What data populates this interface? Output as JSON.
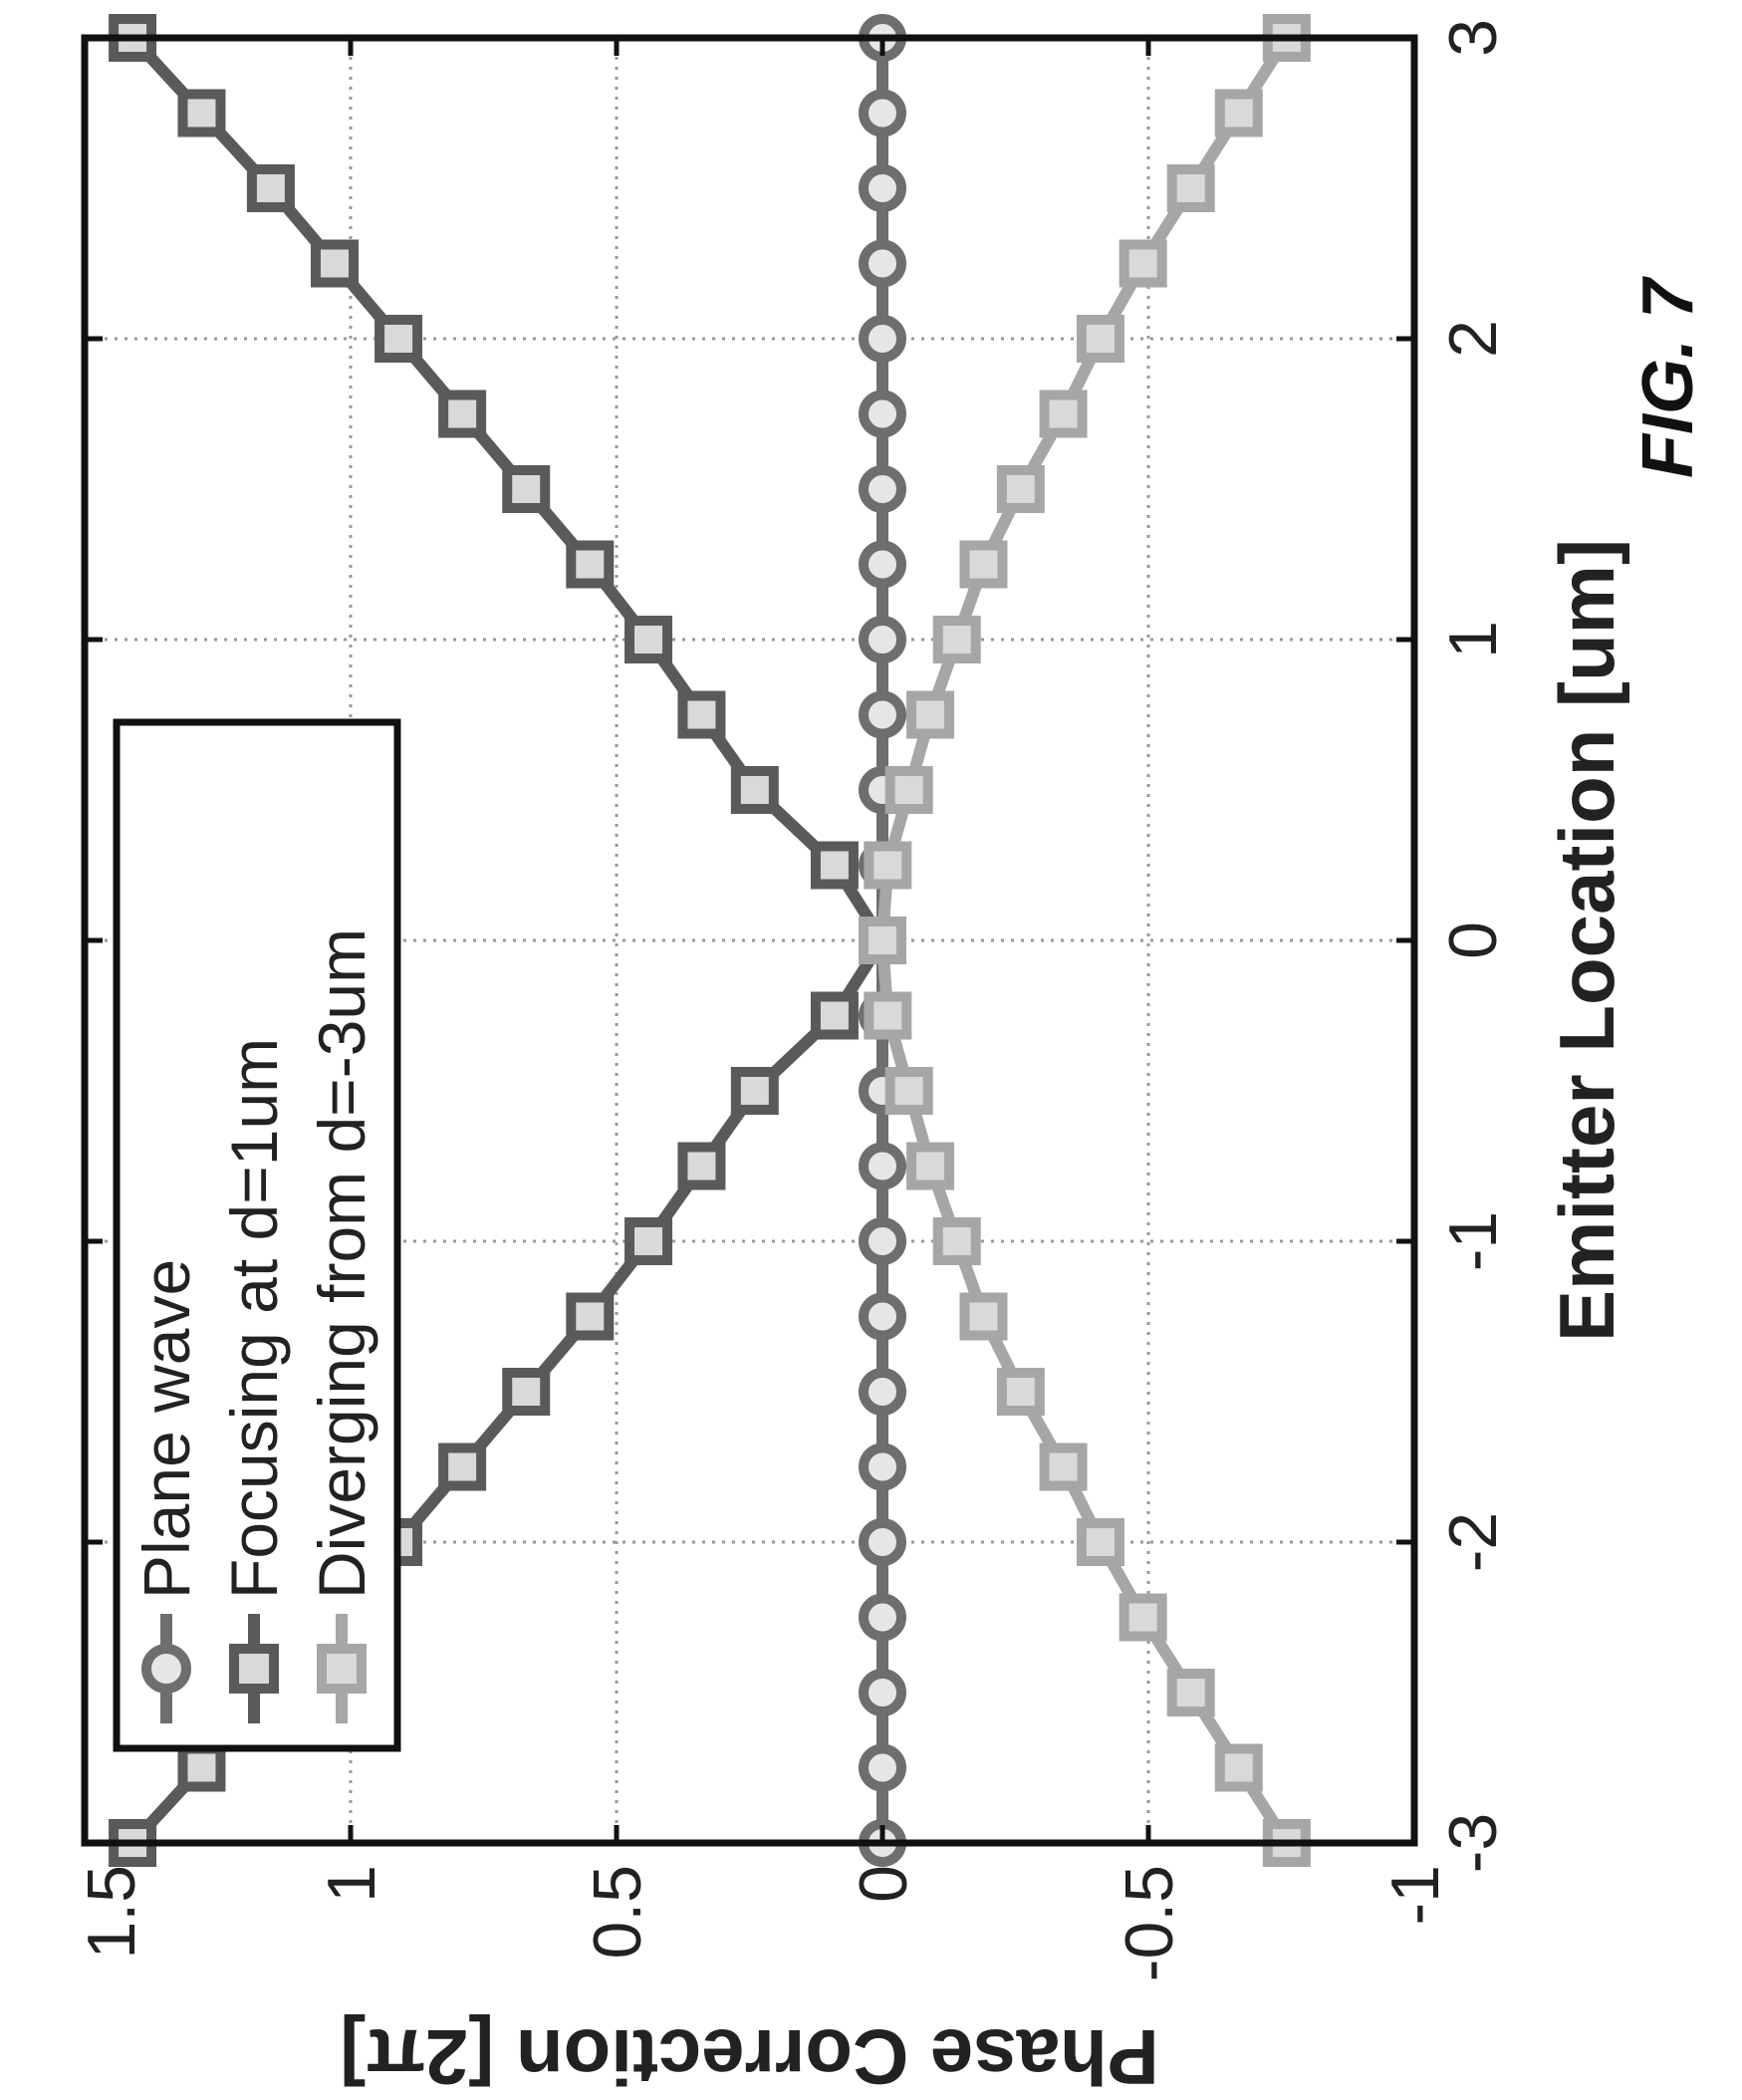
{
  "figure_caption": "FIG. 7",
  "chart_data": {
    "type": "line",
    "xlabel": "Emitter Location [um]",
    "ylabel": "Phase Correction [2π]",
    "xlim": [
      -3,
      3
    ],
    "ylim": [
      -1,
      1.5
    ],
    "xticks": [
      -3,
      -2,
      -1,
      0,
      1,
      2,
      3
    ],
    "xtick_labels": [
      "-3",
      "-2",
      "-1",
      "0",
      "1",
      "2",
      "3"
    ],
    "yticks": [
      -1,
      -0.5,
      0,
      0.5,
      1,
      1.5
    ],
    "ytick_labels": [
      "-1",
      "-0.5",
      "0",
      "0.5",
      "1",
      "1.5"
    ],
    "grid": true,
    "legend_position": "top-left",
    "x": [
      -3,
      -2.75,
      -2.5,
      -2.25,
      -2,
      -1.75,
      -1.5,
      -1.25,
      -1,
      -0.75,
      -0.5,
      -0.25,
      0,
      0.25,
      0.5,
      0.75,
      1,
      1.25,
      1.5,
      1.75,
      2,
      2.25,
      2.5,
      2.75,
      3
    ],
    "series": [
      {
        "name": "Plane wave",
        "color": "#6e6e6e",
        "marker": "circle",
        "values": [
          0,
          0,
          0,
          0,
          0,
          0,
          0,
          0,
          0,
          0,
          0,
          0,
          0,
          0,
          0,
          0,
          0,
          0,
          0,
          0,
          0,
          0,
          0,
          0,
          0
        ]
      },
      {
        "name": "Focusing at d=1um",
        "color": "#5a5a5a",
        "marker": "square",
        "values": [
          1.41,
          1.28,
          1.15,
          1.03,
          0.91,
          0.79,
          0.67,
          0.55,
          0.44,
          0.34,
          0.24,
          0.09,
          0,
          0.09,
          0.24,
          0.34,
          0.44,
          0.55,
          0.67,
          0.79,
          0.91,
          1.03,
          1.15,
          1.28,
          1.41
        ]
      },
      {
        "name": "Diverging from d=-3um",
        "color": "#a6a6a6",
        "marker": "square",
        "values": [
          -0.76,
          -0.67,
          -0.58,
          -0.49,
          -0.41,
          -0.34,
          -0.26,
          -0.19,
          -0.14,
          -0.09,
          -0.05,
          -0.01,
          0,
          -0.01,
          -0.05,
          -0.09,
          -0.14,
          -0.19,
          -0.26,
          -0.34,
          -0.41,
          -0.49,
          -0.58,
          -0.67,
          -0.76
        ]
      }
    ]
  }
}
